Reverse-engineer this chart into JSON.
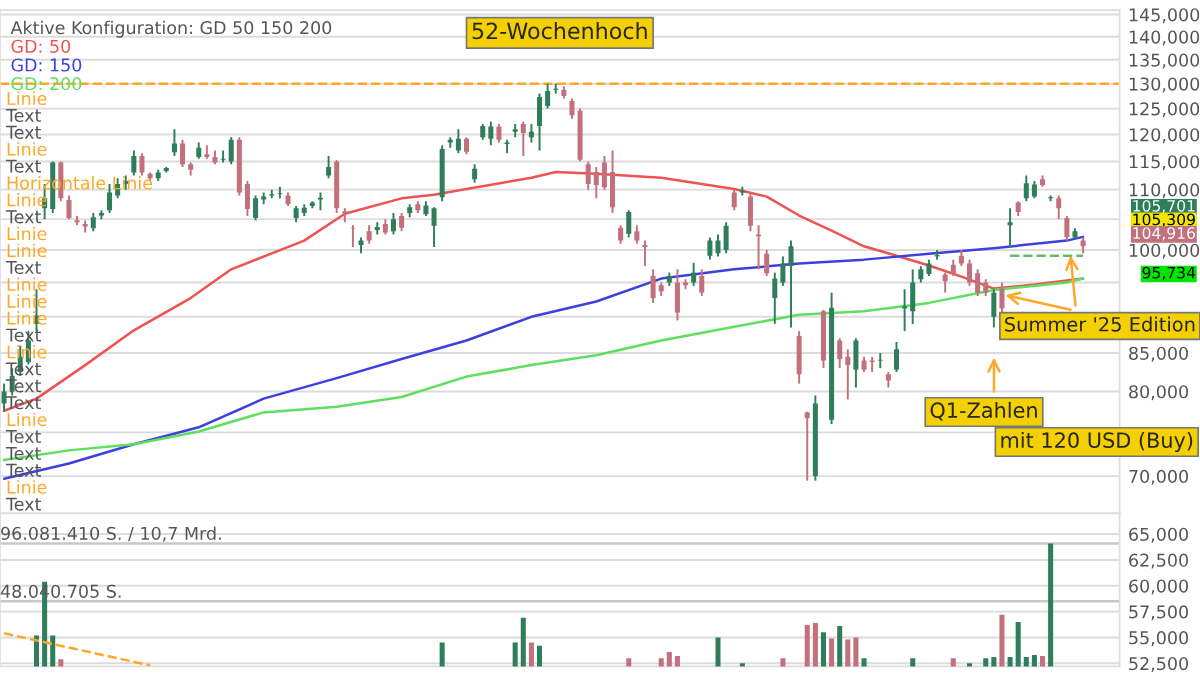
{
  "chart_data": [
    {
      "type": "candlestick",
      "categories": [
        null,
        null,
        null,
        null,
        null,
        null,
        null,
        null,
        null,
        null,
        null,
        null,
        null,
        null,
        null,
        null,
        null,
        null,
        null,
        null,
        null,
        null,
        null,
        null,
        null,
        null,
        null,
        null,
        null,
        null,
        null,
        null,
        null,
        null,
        null,
        null,
        null,
        null,
        null,
        null,
        null,
        null,
        null,
        null,
        null,
        null,
        null,
        null,
        null,
        null,
        null,
        null,
        null,
        null,
        null,
        null,
        null,
        null,
        null,
        null,
        null,
        null,
        null,
        null,
        null,
        null,
        null,
        null,
        null,
        null,
        null,
        null,
        null,
        null,
        null,
        null,
        null,
        null,
        null,
        null,
        null,
        null,
        null,
        null,
        null,
        null,
        null,
        null,
        null,
        null,
        null,
        null,
        null,
        null,
        null,
        null,
        null,
        null,
        null,
        null,
        null,
        null,
        null,
        null,
        null,
        null,
        null,
        null,
        null,
        null,
        null,
        null,
        null,
        null,
        null,
        null,
        null,
        null,
        null,
        null,
        null,
        null,
        null,
        null,
        null,
        null,
        null,
        null,
        null,
        null,
        null,
        null,
        null,
        null
      ],
      "ohlc": [
        [
          78500,
          81000,
          77500,
          80000
        ],
        [
          80000,
          83000,
          79500,
          82000
        ],
        [
          82500,
          86000,
          82000,
          84500
        ],
        [
          83800,
          88000,
          83500,
          86700
        ],
        [
          89000,
          94000,
          88000,
          90200
        ],
        [
          106800,
          111000,
          105000,
          108500
        ],
        [
          106700,
          115000,
          106000,
          114800
        ],
        [
          114800,
          115000,
          108000,
          108500
        ],
        [
          108200,
          109000,
          105000,
          105200
        ],
        [
          104800,
          105500,
          104000,
          104500
        ],
        [
          104200,
          104800,
          102800,
          103800
        ],
        [
          103500,
          106000,
          103000,
          105300
        ],
        [
          105600,
          106500,
          105000,
          106000
        ],
        [
          106500,
          111000,
          106000,
          109500
        ],
        [
          109000,
          112000,
          108500,
          111000
        ],
        [
          111000,
          112500,
          110000,
          111500
        ],
        [
          113000,
          117000,
          112500,
          116000
        ],
        [
          116000,
          116500,
          112500,
          113000
        ],
        [
          112800,
          113000,
          111500,
          112000
        ],
        [
          112000,
          113500,
          111500,
          113000
        ],
        [
          113300,
          114000,
          113000,
          113800
        ],
        [
          116700,
          121000,
          116000,
          118300
        ],
        [
          118300,
          119000,
          114000,
          114500
        ],
        [
          114500,
          114800,
          112500,
          113500
        ],
        [
          115800,
          118500,
          115500,
          117500
        ],
        [
          116300,
          118000,
          115500,
          115800
        ],
        [
          115800,
          117000,
          114500,
          114800
        ],
        [
          115300,
          117000,
          114800,
          115500
        ],
        [
          115000,
          119500,
          114500,
          119000
        ],
        [
          119000,
          119500,
          109000,
          109500
        ],
        [
          111000,
          111500,
          105500,
          106700
        ],
        [
          105200,
          109000,
          104800,
          108500
        ],
        [
          108300,
          109500,
          107500,
          108800
        ],
        [
          109000,
          110000,
          108500,
          109200
        ],
        [
          109300,
          110500,
          108500,
          109400
        ],
        [
          109000,
          109500,
          107200,
          107500
        ],
        [
          105200,
          107200,
          104500,
          106800
        ],
        [
          106000,
          107500,
          105500,
          106900
        ],
        [
          107200,
          108000,
          106800,
          107800
        ],
        [
          108300,
          109500,
          106500,
          108600
        ],
        [
          112500,
          116000,
          112000,
          114000
        ],
        [
          115000,
          115200,
          106000,
          106800
        ],
        [
          106300,
          106800,
          104500,
          106000
        ],
        [
          103600,
          104000,
          100500,
          103500
        ],
        [
          100800,
          102000,
          99500,
          101500
        ],
        [
          103000,
          104000,
          101000,
          101500
        ],
        [
          103200,
          104500,
          102500,
          103700
        ],
        [
          104200,
          105000,
          102500,
          102800
        ],
        [
          103000,
          106000,
          102500,
          105000
        ],
        [
          105500,
          106000,
          103000,
          103600
        ],
        [
          106000,
          107500,
          105300,
          107000
        ],
        [
          107500,
          108000,
          106000,
          106500
        ],
        [
          105800,
          108000,
          105500,
          107300
        ],
        [
          103900,
          107000,
          100500,
          106800
        ],
        [
          108700,
          118000,
          108000,
          117300
        ],
        [
          118500,
          119500,
          117500,
          119000
        ],
        [
          117000,
          121000,
          116500,
          119200
        ],
        [
          119200,
          119500,
          116300,
          116800
        ],
        [
          111800,
          114500,
          111200,
          113700
        ],
        [
          119500,
          122000,
          119000,
          121600
        ],
        [
          119200,
          122500,
          118000,
          121500
        ],
        [
          121500,
          122000,
          118500,
          119000
        ],
        [
          118200,
          119000,
          116500,
          118500
        ],
        [
          120500,
          122000,
          119500,
          121000
        ],
        [
          122000,
          122500,
          116000,
          120300
        ],
        [
          119500,
          122000,
          118500,
          120500
        ],
        [
          121600,
          128000,
          117000,
          127300
        ],
        [
          125500,
          130000,
          125000,
          128500
        ],
        [
          128800,
          130000,
          128000,
          129000
        ],
        [
          128800,
          129500,
          127000,
          127500
        ],
        [
          126500,
          127000,
          123000,
          123700
        ],
        [
          124600,
          125000,
          115000,
          115300
        ],
        [
          114500,
          115000,
          110000,
          111000
        ],
        [
          113100,
          114000,
          108500,
          110800
        ],
        [
          114800,
          116000,
          110000,
          110400
        ],
        [
          113100,
          117000,
          106000,
          107000
        ],
        [
          103600,
          104000,
          101000,
          101500
        ],
        [
          102600,
          106500,
          102000,
          106200
        ],
        [
          103000,
          104000,
          101000,
          101500
        ],
        [
          100800,
          101500,
          97500,
          100500
        ],
        [
          96000,
          97000,
          92000,
          92700
        ],
        [
          94600,
          95000,
          93000,
          93700
        ],
        [
          95000,
          96500,
          94500,
          96000
        ],
        [
          95000,
          97000,
          89500,
          90600
        ],
        [
          95000,
          95500,
          94000,
          94600
        ],
        [
          95000,
          98000,
          94500,
          96500
        ],
        [
          96000,
          97000,
          93000,
          93500
        ],
        [
          99100,
          102000,
          98500,
          101500
        ],
        [
          99500,
          102500,
          99000,
          101500
        ],
        [
          100000,
          104500,
          99500,
          103900
        ],
        [
          109500,
          110000,
          106500,
          107000
        ],
        [
          109500,
          110500,
          109000,
          109800
        ],
        [
          108800,
          109500,
          103000,
          103900
        ],
        [
          102500,
          104000,
          97000,
          102200
        ],
        [
          99400,
          100000,
          96000,
          96400
        ],
        [
          92700,
          96500,
          89000,
          95600
        ],
        [
          95000,
          99000,
          94500,
          97900
        ],
        [
          97500,
          101500,
          88500,
          100600
        ],
        [
          87300,
          88000,
          81000,
          82200
        ],
        [
          77400,
          77500,
          69500,
          76700
        ],
        [
          70000,
          79500,
          69500,
          78500
        ],
        [
          90800,
          91000,
          83000,
          84000
        ],
        [
          76500,
          93500,
          76000,
          91300
        ],
        [
          86700,
          87000,
          83000,
          84200
        ],
        [
          84500,
          85500,
          79000,
          83400
        ],
        [
          82800,
          87000,
          80500,
          86700
        ],
        [
          84000,
          84500,
          82500,
          82800
        ],
        [
          84000,
          84500,
          82500,
          83800
        ],
        [
          84000,
          85000,
          83000,
          84100
        ],
        [
          82200,
          82500,
          80500,
          81400
        ],
        [
          82800,
          86500,
          82500,
          85500
        ],
        [
          91200,
          94000,
          88000,
          91500
        ],
        [
          90800,
          97000,
          89000,
          95000
        ],
        [
          95500,
          97500,
          95000,
          97000
        ],
        [
          96300,
          98500,
          96000,
          97900
        ],
        [
          99000,
          100000,
          98500,
          99200
        ],
        [
          96200,
          96500,
          93500,
          95200
        ],
        [
          97700,
          98500,
          96000,
          96400
        ],
        [
          99100,
          100000,
          97500,
          97900
        ],
        [
          97900,
          98500,
          94500,
          95000
        ],
        [
          96400,
          97000,
          93000,
          93500
        ],
        [
          95000,
          95500,
          93000,
          93500
        ],
        [
          90000,
          94000,
          88500,
          93500
        ],
        [
          94100,
          95000,
          89500,
          91200
        ],
        [
          104000,
          106800,
          100500,
          104500
        ],
        [
          107800,
          108000,
          105500,
          106200
        ],
        [
          108500,
          112500,
          108000,
          111100
        ],
        [
          108800,
          111500,
          108500,
          110900
        ],
        [
          111800,
          112500,
          110500,
          110800
        ],
        [
          108500,
          109000,
          108000,
          108700
        ],
        [
          108500,
          109000,
          105000,
          106800
        ],
        [
          105200,
          105500,
          101500,
          102100
        ],
        [
          102000,
          103500,
          101800,
          103000
        ],
        [
          101500,
          102000,
          99500,
          100600
        ]
      ],
      "series": [
        {
          "name": "GD: 50",
          "type": "line",
          "color": "#ef5350",
          "values": [
            77600,
            null,
            null,
            null,
            79100,
            null,
            null,
            null,
            null,
            null,
            83400,
            null,
            null,
            null,
            null,
            null,
            88100,
            null,
            null,
            null,
            null,
            null,
            null,
            92700,
            null,
            null,
            null,
            null,
            97000,
            null,
            null,
            null,
            null,
            null,
            null,
            null,
            null,
            101500,
            null,
            null,
            null,
            null,
            105900,
            null,
            null,
            null,
            null,
            null,
            null,
            108500,
            null,
            null,
            null,
            109100,
            null,
            null,
            null,
            110100,
            null,
            null,
            null,
            null,
            null,
            null,
            null,
            112100,
            null,
            null,
            113100,
            null,
            null,
            null,
            null,
            112800,
            null,
            null,
            null,
            null,
            null,
            null,
            null,
            112100,
            null,
            null,
            null,
            null,
            null,
            null,
            null,
            null,
            110100,
            null,
            null,
            null,
            108800,
            null,
            null,
            null,
            105600,
            null,
            null,
            null,
            103100,
            null,
            null,
            null,
            100600,
            null,
            null,
            null,
            99100,
            null,
            null,
            null,
            97600,
            null,
            null,
            null,
            95900,
            null,
            null,
            null,
            94100,
            null,
            null,
            null,
            null,
            94700,
            null,
            null,
            null,
            null,
            null,
            95600
          ]
        },
        {
          "name": "GD: 150",
          "type": "line",
          "color": "#3f3fe0",
          "values": [
            69700,
            null,
            null,
            null,
            null,
            null,
            null,
            null,
            71400,
            null,
            null,
            null,
            null,
            null,
            null,
            null,
            73600,
            null,
            null,
            null,
            null,
            null,
            null,
            null,
            75600,
            null,
            null,
            null,
            null,
            null,
            null,
            null,
            79100,
            null,
            null,
            null,
            null,
            null,
            null,
            null,
            null,
            81700,
            null,
            null,
            null,
            null,
            null,
            null,
            null,
            84200,
            null,
            null,
            null,
            null,
            null,
            null,
            null,
            86700,
            null,
            null,
            null,
            null,
            null,
            null,
            null,
            90000,
            null,
            null,
            null,
            null,
            null,
            null,
            null,
            92200,
            null,
            null,
            null,
            null,
            null,
            null,
            null,
            95600,
            null,
            null,
            null,
            null,
            null,
            null,
            null,
            null,
            97000,
            null,
            null,
            null,
            null,
            null,
            null,
            null,
            97900,
            null,
            null,
            null,
            null,
            null,
            null,
            null,
            98500,
            null,
            null,
            null,
            null,
            null,
            null,
            null,
            99400,
            null,
            null,
            null,
            null,
            null,
            null,
            null,
            100300,
            null,
            null,
            null,
            null,
            null,
            null,
            null,
            null,
            101500,
            null,
            102100
          ]
        },
        {
          "name": "GD: 200",
          "type": "line",
          "color": "#5ee05e",
          "values": [
            71800,
            null,
            null,
            null,
            null,
            null,
            null,
            null,
            72900,
            null,
            null,
            null,
            null,
            null,
            null,
            null,
            73600,
            null,
            null,
            null,
            null,
            null,
            null,
            null,
            75100,
            null,
            null,
            null,
            null,
            null,
            null,
            null,
            77400,
            null,
            null,
            null,
            null,
            null,
            null,
            null,
            null,
            78100,
            null,
            null,
            null,
            null,
            null,
            null,
            null,
            79300,
            null,
            null,
            null,
            null,
            null,
            null,
            null,
            81900,
            null,
            null,
            null,
            null,
            null,
            null,
            null,
            83400,
            null,
            null,
            null,
            null,
            null,
            null,
            null,
            84700,
            null,
            null,
            null,
            null,
            null,
            null,
            null,
            86700,
            null,
            null,
            null,
            null,
            null,
            null,
            null,
            null,
            88600,
            null,
            null,
            null,
            null,
            null,
            null,
            null,
            90300,
            null,
            null,
            null,
            null,
            null,
            null,
            null,
            90800,
            null,
            null,
            null,
            null,
            null,
            null,
            null,
            92000,
            null,
            null,
            null,
            null,
            null,
            null,
            null,
            93900,
            null,
            null,
            null,
            null,
            null,
            null,
            null,
            null,
            95000,
            null,
            95600
          ]
        },
        {
          "type": "line",
          "color": "#66bb6a",
          "line_style": "dashed",
          "values": [
            null,
            null,
            null,
            null,
            null,
            null,
            null,
            null,
            null,
            null,
            null,
            null,
            null,
            null,
            null,
            null,
            null,
            null,
            null,
            null,
            null,
            null,
            null,
            null,
            null,
            null,
            null,
            null,
            null,
            null,
            null,
            null,
            null,
            null,
            null,
            null,
            null,
            null,
            null,
            null,
            null,
            null,
            null,
            null,
            null,
            null,
            null,
            null,
            null,
            null,
            null,
            null,
            null,
            null,
            null,
            null,
            null,
            null,
            null,
            null,
            null,
            null,
            null,
            null,
            null,
            null,
            null,
            null,
            null,
            null,
            null,
            null,
            null,
            null,
            null,
            null,
            null,
            null,
            null,
            null,
            null,
            null,
            null,
            null,
            null,
            null,
            null,
            null,
            null,
            null,
            null,
            null,
            null,
            null,
            null,
            null,
            null,
            null,
            null,
            null,
            null,
            null,
            null,
            null,
            null,
            null,
            null,
            null,
            null,
            null,
            null,
            null,
            null,
            null,
            null,
            null,
            null,
            null,
            null,
            null,
            null,
            null,
            null,
            null,
            99100,
            null,
            null,
            null,
            null,
            null,
            null,
            null,
            null,
            99100
          ]
        }
      ],
      "log": true,
      "ylim": [
        66000,
        146000
      ],
      "yticks": [
        {
          "value": 70000,
          "label": "70,000"
        },
        {
          "value": 75000,
          "label": null
        },
        {
          "value": 80000,
          "label": "80,000"
        },
        {
          "value": 85000,
          "label": "85,000"
        },
        {
          "value": 90000,
          "label": null
        },
        {
          "value": 95000,
          "label": null
        },
        {
          "value": 100000,
          "label": "100,000"
        },
        {
          "value": 105000,
          "label": null
        },
        {
          "value": 110000,
          "label": "110,000"
        },
        {
          "value": 115000,
          "label": "115,000"
        },
        {
          "value": 120000,
          "label": "120,000"
        },
        {
          "value": 125000,
          "label": "125,000"
        },
        {
          "value": 130000,
          "label": "130,000"
        },
        {
          "value": 135000,
          "label": "135,000"
        },
        {
          "value": 140000,
          "label": "140,000"
        },
        {
          "value": 145000,
          "label": "145,000"
        }
      ],
      "grid": "y",
      "legend": "top left",
      "legend_title": "Aktive Konfiguration: GD 50 150 200",
      "tick_labels": "y",
      "ref_lines": [
        {
          "axis": "y",
          "value": 130000,
          "label": "52-Wochenhoch",
          "color": "#ffa726",
          "line_style": "dashed"
        }
      ],
      "annotations": [
        "Q1-Zahlen",
        "mit 120 USD (Buy)",
        "Summer '25 Edition",
        "105,701",
        "105,309",
        "104,916",
        "95,734",
        "Linie",
        "Text",
        "Text",
        "Linie",
        "Text",
        "Horizontale Linie",
        "Linie",
        "Text",
        "Linie",
        "Linie",
        "Text",
        "Linie",
        "Linie",
        "Linie",
        "Text",
        "Linie",
        "Text",
        "Text",
        "Text",
        "Linie",
        "Text",
        "Text",
        "Text",
        "Linie",
        "Text"
      ]
    },
    {
      "type": "bar",
      "categories": [
        null,
        null,
        null,
        null,
        null,
        null,
        null,
        null,
        null,
        null,
        null,
        null,
        null,
        null,
        null,
        null,
        null,
        null,
        null,
        null,
        null,
        null,
        null,
        null,
        null,
        null,
        null,
        null,
        null,
        null,
        null,
        null,
        null,
        null,
        null,
        null,
        null,
        null,
        null,
        null,
        null,
        null,
        null,
        null,
        null,
        null,
        null,
        null,
        null,
        null,
        null,
        null,
        null,
        null,
        null,
        null,
        null,
        null,
        null,
        null,
        null,
        null,
        null,
        null,
        null,
        null,
        null,
        null,
        null,
        null,
        null,
        null,
        null,
        null,
        null,
        null,
        null,
        null,
        null,
        null,
        null,
        null,
        null,
        null,
        null,
        null,
        null,
        null,
        null,
        null,
        null,
        null,
        null,
        null,
        null,
        null,
        null,
        null,
        null,
        null,
        null,
        null,
        null,
        null,
        null,
        null,
        null,
        null,
        null,
        null,
        null,
        null,
        null,
        null,
        null,
        null,
        null,
        null,
        null,
        null,
        null,
        null,
        null,
        null,
        null,
        null,
        null,
        null,
        null,
        null,
        null,
        null,
        null,
        null
      ],
      "series": [
        {
          "type": "bar",
          "values": [
            null,
            null,
            null,
            null,
            55200,
            60400,
            55200,
            52900,
            null,
            null,
            null,
            null,
            null,
            null,
            null,
            null,
            null,
            null,
            null,
            null,
            null,
            null,
            null,
            null,
            null,
            null,
            null,
            null,
            null,
            null,
            null,
            null,
            null,
            null,
            null,
            null,
            null,
            null,
            null,
            null,
            null,
            null,
            null,
            null,
            null,
            null,
            null,
            null,
            null,
            null,
            null,
            null,
            null,
            null,
            54500,
            null,
            null,
            null,
            null,
            null,
            null,
            null,
            null,
            54500,
            56900,
            54500,
            54200,
            null,
            null,
            null,
            null,
            null,
            null,
            null,
            null,
            null,
            null,
            53000,
            null,
            null,
            null,
            53000,
            53600,
            53200,
            null,
            null,
            null,
            null,
            55000,
            null,
            null,
            52500,
            null,
            null,
            null,
            null,
            53000,
            null,
            null,
            56200,
            56400,
            55500,
            54900,
            56100,
            54800,
            55000,
            53000,
            null,
            null,
            null,
            null,
            null,
            53000,
            null,
            null,
            null,
            null,
            53000,
            null,
            52500,
            null,
            53000,
            53100,
            57200,
            53100,
            56500,
            53100,
            53300,
            53200,
            64100,
            null,
            null,
            null,
            null
          ],
          "colors": [
            null,
            null,
            null,
            null,
            "#2e7d5b",
            "#2e7d5b",
            "#2e7d5b",
            "#c2707c",
            null,
            null,
            null,
            null,
            null,
            null,
            null,
            null,
            null,
            null,
            null,
            null,
            null,
            null,
            null,
            null,
            null,
            null,
            null,
            null,
            null,
            null,
            null,
            null,
            null,
            null,
            null,
            null,
            null,
            null,
            null,
            null,
            null,
            null,
            null,
            null,
            null,
            null,
            null,
            null,
            null,
            null,
            null,
            null,
            null,
            null,
            "#2e7d5b",
            null,
            null,
            null,
            null,
            null,
            null,
            null,
            null,
            "#2e7d5b",
            "#2e7d5b",
            "#c2707c",
            "#2e7d5b",
            null,
            null,
            null,
            null,
            null,
            null,
            null,
            null,
            null,
            null,
            "#c2707c",
            null,
            null,
            null,
            "#c2707c",
            "#c2707c",
            "#c2707c",
            null,
            null,
            null,
            null,
            "#2e7d5b",
            null,
            null,
            "#2e7d5b",
            null,
            null,
            null,
            null,
            "#c2707c",
            null,
            null,
            "#c2707c",
            "#c2707c",
            "#2e7d5b",
            "#c2707c",
            "#2e7d5b",
            "#c2707c",
            "#c2707c",
            "#2e7d5b",
            null,
            null,
            null,
            null,
            null,
            "#2e7d5b",
            null,
            null,
            null,
            null,
            "#c2707c",
            null,
            "#2e7d5b",
            null,
            "#2e7d5b",
            "#2e7d5b",
            "#c2707c",
            "#2e7d5b",
            "#2e7d5b",
            "#2e7d5b",
            "#2e7d5b",
            "#c2707c",
            "#2e7d5b",
            null,
            null,
            null,
            null
          ]
        },
        {
          "type": "line",
          "color": "#ffa726",
          "line_style": "dashed",
          "values": [
            55400,
            null,
            null,
            null,
            null,
            null,
            null,
            null,
            null,
            null,
            null,
            null,
            null,
            null,
            null,
            null,
            null,
            null,
            52300,
            null,
            null,
            null,
            null,
            null,
            null,
            null,
            null,
            null,
            null,
            null,
            null,
            null,
            null,
            null,
            null,
            null,
            null,
            null,
            null,
            null,
            null,
            null,
            null,
            null,
            null,
            null,
            null,
            null,
            null,
            null,
            null,
            null,
            null,
            null,
            null,
            null,
            null,
            null,
            null,
            null,
            null,
            null,
            null,
            null,
            null,
            null,
            null,
            null,
            null,
            null,
            null,
            null,
            null,
            null,
            null,
            null,
            null,
            null,
            null,
            null,
            null,
            null,
            null,
            null,
            null,
            null,
            null,
            null,
            null,
            null,
            null,
            null,
            null,
            null,
            null,
            null,
            null,
            null,
            null,
            null,
            null,
            null,
            null,
            null,
            null,
            null,
            null,
            null,
            null,
            null,
            null,
            null,
            null,
            null,
            null,
            null,
            null,
            null,
            null,
            null,
            null,
            null,
            null,
            null,
            null,
            null,
            null,
            null,
            null,
            null,
            null,
            null,
            null,
            null
          ]
        }
      ],
      "ylim": [
        52200,
        67000
      ],
      "yticks": [
        {
          "value": 52500,
          "label": "52,500"
        },
        {
          "value": 55000,
          "label": "55,000"
        },
        {
          "value": 57500,
          "label": "57,500"
        },
        {
          "value": 60000,
          "label": "60,000"
        },
        {
          "value": 62500,
          "label": "62,500"
        },
        {
          "value": 65000,
          "label": "65,000"
        }
      ],
      "grid": "y",
      "tick_labels": "y",
      "ref_lines": [
        {
          "axis": "y",
          "value": 64100,
          "label": "96.081.410 S. / 10,7 Mrd.",
          "color": "#c8c8c8"
        },
        {
          "axis": "y",
          "value": 58500,
          "label": "48.040.705 S.",
          "color": "#c8c8c8"
        }
      ]
    }
  ]
}
